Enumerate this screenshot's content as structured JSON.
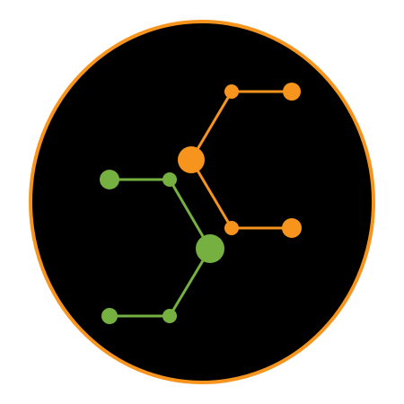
{
  "logo": {
    "icon": "molecule-network-icon",
    "colors": {
      "background": "#ffffff",
      "disk": "#000000",
      "ring": "#F7941D",
      "orange": "#F7941D",
      "green": "#76B041"
    },
    "network": {
      "orange_nodes": [
        "hub",
        "upper-branch",
        "upper-end",
        "lower-branch",
        "lower-end"
      ],
      "green_nodes": [
        "hub",
        "upper-branch",
        "upper-end",
        "lower-branch",
        "lower-end"
      ]
    }
  }
}
